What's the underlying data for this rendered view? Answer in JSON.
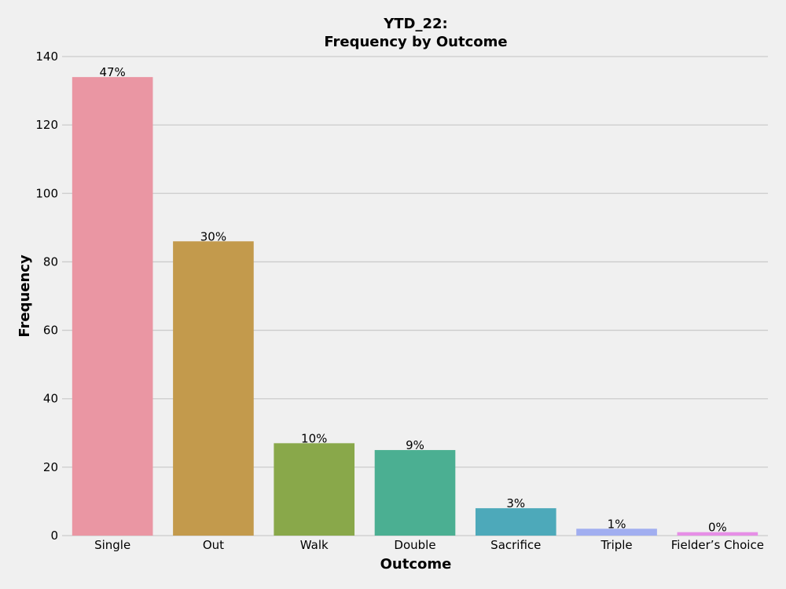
{
  "chart_data": {
    "type": "bar",
    "title_line1": "YTD_22:",
    "title_line2": "Frequency by Outcome",
    "xlabel": "Outcome",
    "ylabel": "Frequency",
    "categories": [
      "Single",
      "Out",
      "Walk",
      "Double",
      "Sacrifice",
      "Triple",
      "Fielder’s Choice"
    ],
    "values": [
      134,
      86,
      27,
      25,
      8,
      2,
      1
    ],
    "data_labels": [
      "47%",
      "30%",
      "10%",
      "9%",
      "3%",
      "1%",
      "0%"
    ],
    "colors": [
      "#ea96a3",
      "#c39a4c",
      "#89a84a",
      "#4baf92",
      "#4da9ba",
      "#a1aef0",
      "#e68fe6"
    ],
    "ylim": [
      0,
      140
    ],
    "yticks": [
      0,
      20,
      40,
      60,
      80,
      100,
      120,
      140
    ],
    "grid": true,
    "grid_axis": "y",
    "background": "#f0f0f0"
  }
}
